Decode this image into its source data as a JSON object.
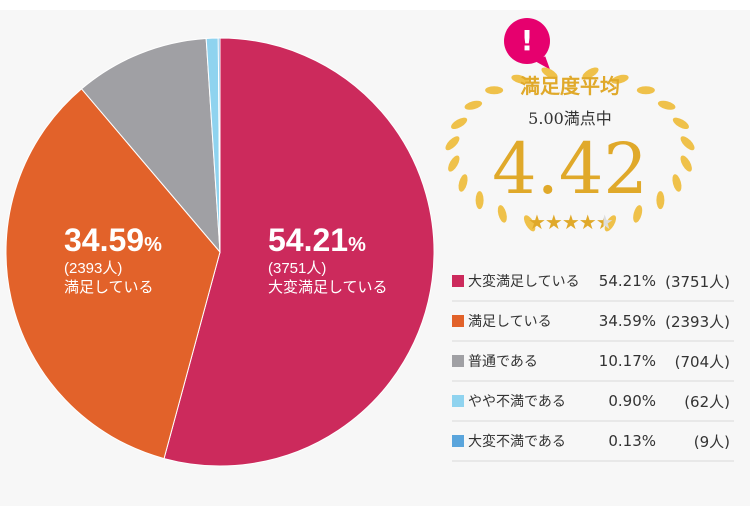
{
  "chart_data": {
    "type": "pie",
    "start": "12 o'clock, clockwise",
    "slices": [
      {
        "label": "大変満足している",
        "percent": 54.21,
        "count": "3751人",
        "color": "#cc2a5c"
      },
      {
        "label": "満足している",
        "percent": 34.59,
        "count": "2393人",
        "color": "#e2622a"
      },
      {
        "label": "普通である",
        "percent": 10.17,
        "count": "704人",
        "color": "#a0a0a4"
      },
      {
        "label": "やや不満である",
        "percent": 0.9,
        "count": "62人",
        "color": "#8fd3ef"
      },
      {
        "label": "大変不満である",
        "percent": 0.13,
        "count": "9人",
        "color": "#5aa5dc"
      }
    ],
    "pie_labels": [
      {
        "value": "54.21",
        "unit": "%",
        "count": "(3751人)",
        "name": "大変満足している"
      },
      {
        "value": "34.59",
        "unit": "%",
        "count": "(2393人)",
        "name": "満足している"
      }
    ]
  },
  "summary": {
    "badge_icon": "exclamation-icon",
    "title": "満足度平均",
    "subtitle": "5.00満点中",
    "value": "4.42",
    "stars": 4.42,
    "star_glyphs": "★★★★",
    "half_star": "★"
  },
  "legend": [
    {
      "name": "大変満足している",
      "pct": "54.21%",
      "count": "(3751人)"
    },
    {
      "name": "満足している",
      "pct": "34.59%",
      "count": "(2393人)"
    },
    {
      "name": "普通である",
      "pct": "10.17%",
      "count": "(704人)"
    },
    {
      "name": "やや不満である",
      "pct": "0.90%",
      "count": "(62人)"
    },
    {
      "name": "大変不満である",
      "pct": "0.13%",
      "count": "(9人)"
    }
  ]
}
